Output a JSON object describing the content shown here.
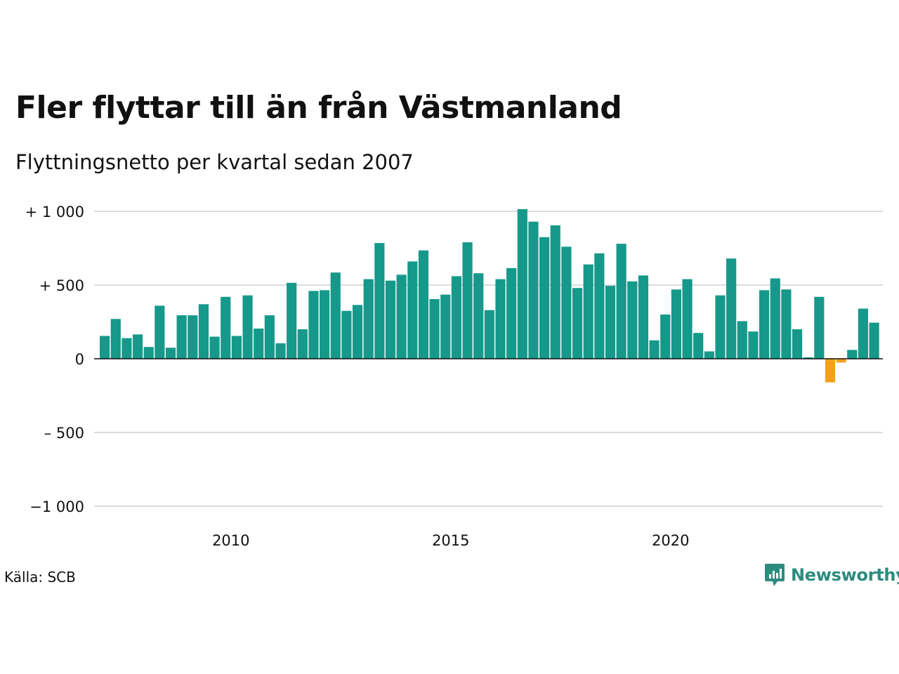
{
  "header": {
    "title": "Fler flyttar till än från Västmanland",
    "subtitle": "Flyttningsnetto per kvartal sedan 2007"
  },
  "footer": {
    "source": "Källa: SCB",
    "brand": "Newsworthy"
  },
  "colors": {
    "positive": "#16998a",
    "negative": "#f5a01a",
    "grid": "#dcdce0",
    "brand": "#2c8c7e"
  },
  "icons": {
    "brand_logo": "bar-chart-speech-bubble-icon"
  },
  "chart_data": {
    "type": "bar",
    "title": "Fler flyttar till än från Västmanland",
    "subtitle": "Flyttningsnetto per kvartal sedan 2007",
    "x_start": "2007 Q1",
    "periods_per_year": 4,
    "values": [
      155,
      270,
      140,
      165,
      80,
      360,
      75,
      295,
      295,
      370,
      150,
      420,
      155,
      430,
      205,
      295,
      105,
      515,
      200,
      460,
      465,
      585,
      325,
      365,
      540,
      785,
      530,
      570,
      660,
      735,
      405,
      435,
      560,
      790,
      580,
      330,
      540,
      615,
      1015,
      930,
      825,
      905,
      760,
      480,
      640,
      715,
      495,
      780,
      525,
      565,
      125,
      300,
      470,
      540,
      175,
      50,
      430,
      680,
      255,
      185,
      465,
      545,
      470,
      200,
      10,
      420,
      -160,
      -25,
      60,
      340,
      245
    ],
    "ylim": [
      -1000,
      1000
    ],
    "y_ticks": [
      {
        "value": 1000,
        "label": "+ 1 000"
      },
      {
        "value": 500,
        "label": "+   500"
      },
      {
        "value": 0,
        "label": "0"
      },
      {
        "value": -500,
        "label": "–  500"
      },
      {
        "value": -1000,
        "label": "−1 000"
      }
    ],
    "x_ticks": [
      {
        "year": 2010,
        "label": "2010"
      },
      {
        "year": 2015,
        "label": "2015"
      },
      {
        "year": 2020,
        "label": "2020"
      }
    ],
    "grid": true,
    "legend": "none"
  }
}
